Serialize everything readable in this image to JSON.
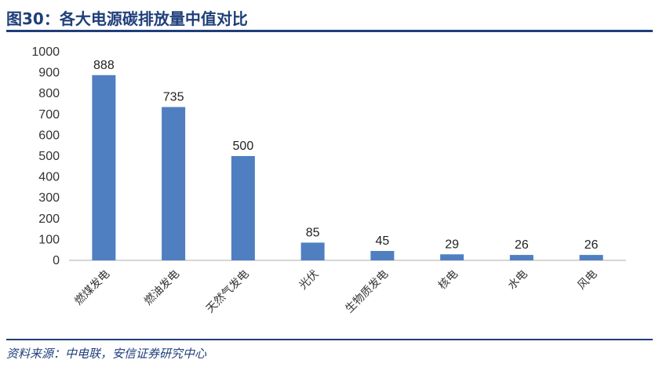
{
  "title": "图30：各大电源碳排放量中值对比",
  "source": "资料来源：中电联，安信证券研究中心",
  "colors": {
    "bar": "#4f7fc1",
    "heading": "#1f3f7a",
    "axis": "#c8c8c8"
  },
  "chart_data": {
    "type": "bar",
    "categories": [
      "燃煤发电",
      "燃油发电",
      "天然气发电",
      "光伏",
      "生物质发电",
      "核电",
      "水电",
      "风电"
    ],
    "values": [
      888,
      735,
      500,
      85,
      45,
      29,
      26,
      26
    ],
    "ylim": [
      0,
      1000
    ],
    "yticks": [
      0,
      100,
      200,
      300,
      400,
      500,
      600,
      700,
      800,
      900,
      1000
    ],
    "data_labels": true,
    "grid": false,
    "legend": "none"
  }
}
